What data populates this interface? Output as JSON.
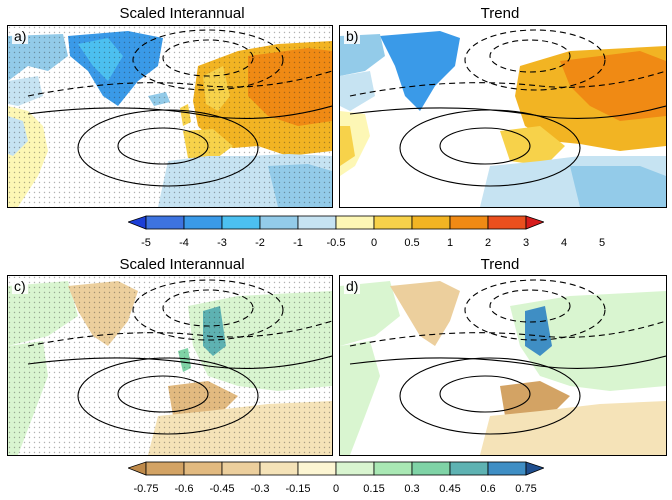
{
  "titles": {
    "a": "Scaled Interannual",
    "b": "Trend",
    "c": "Scaled Interannual",
    "d": "Trend"
  },
  "labels": {
    "a": "a)",
    "b": "b)",
    "c": "c)",
    "d": "d)"
  },
  "colorbar_top": {
    "ticks": [
      "-5",
      "-4",
      "-3",
      "-2",
      "-1",
      "-0.5",
      "0",
      "0.5",
      "1",
      "2",
      "3",
      "4",
      "5"
    ],
    "colors": [
      "#1c3fd6",
      "#3d73e0",
      "#3a9ae8",
      "#4cc0f0",
      "#93cbe9",
      "#c6e3f2",
      "#fdf7b5",
      "#f7d24a",
      "#f2b423",
      "#f08a14",
      "#ea4f1e",
      "#d61c1c"
    ]
  },
  "colorbar_bottom": {
    "ticks": [
      "-0.75",
      "-0.6",
      "-0.45",
      "-0.3",
      "-0.15",
      "0",
      "0.15",
      "0.3",
      "0.45",
      "0.6",
      "0.75"
    ],
    "colors": [
      "#bf8a4a",
      "#d3a364",
      "#e2ba80",
      "#eccf9d",
      "#f5e3b8",
      "#fdf6d3",
      "#d9f5d0",
      "#a9e8b4",
      "#7fd3a6",
      "#5eb2b2",
      "#3f8ec4",
      "#1f4e8e"
    ]
  }
}
